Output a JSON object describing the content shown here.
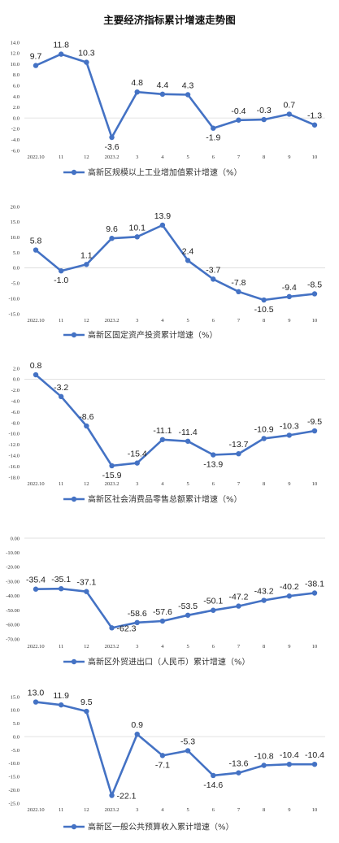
{
  "title": "主要经济指标累计增速走势图",
  "categories": [
    "2022.10",
    "11",
    "12",
    "2023.2",
    "3",
    "4",
    "5",
    "6",
    "7",
    "8",
    "9",
    "10"
  ],
  "line_color": "#4472C4",
  "chart_data": [
    {
      "type": "line",
      "series": [
        {
          "name": "高新区规模以上工业增加值累计增速（%）",
          "values": [
            9.7,
            11.8,
            10.3,
            -3.6,
            4.8,
            4.4,
            4.3,
            -1.9,
            -0.4,
            -0.3,
            0.7,
            -1.3
          ]
        }
      ],
      "ylim": [
        -6,
        14
      ],
      "ystep": 2,
      "decimals": 1,
      "grid": false,
      "legend": "bottom"
    },
    {
      "type": "line",
      "series": [
        {
          "name": "高新区固定资产投资累计增速（%）",
          "values": [
            5.8,
            -1.0,
            1.1,
            9.6,
            10.1,
            13.9,
            2.4,
            -3.7,
            -7.8,
            -10.5,
            -9.4,
            -8.5
          ]
        }
      ],
      "ylim": [
        -15,
        20
      ],
      "ystep": 5,
      "decimals": 1,
      "grid": false,
      "legend": "bottom"
    },
    {
      "type": "line",
      "series": [
        {
          "name": "高新区社会消费品零售总额累计增速（%）",
          "values": [
            0.8,
            -3.2,
            -8.6,
            -15.9,
            -15.4,
            -11.1,
            -11.4,
            -13.9,
            -13.7,
            -10.9,
            -10.3,
            -9.5
          ]
        }
      ],
      "ylim": [
        -18,
        2
      ],
      "ystep": 2,
      "decimals": 1,
      "grid": false,
      "legend": "bottom"
    },
    {
      "type": "line",
      "series": [
        {
          "name": "高新区外贸进出口（人民币）累计增速（%）",
          "values": [
            -35.4,
            -35.1,
            -37.1,
            -62.3,
            -58.6,
            -57.6,
            -53.5,
            -50.1,
            -47.2,
            -43.2,
            -40.2,
            -38.1
          ]
        }
      ],
      "ylim": [
        -70,
        0
      ],
      "ystep": 10,
      "decimals": 2,
      "grid": false,
      "legend": "bottom"
    },
    {
      "type": "line",
      "series": [
        {
          "name": "高新区一般公共预算收入累计增速（%）",
          "values": [
            13.0,
            11.9,
            9.5,
            -22.1,
            0.9,
            -7.1,
            -5.3,
            -14.6,
            -13.6,
            -10.8,
            -10.4,
            -10.4
          ]
        }
      ],
      "ylim": [
        -25,
        15
      ],
      "ystep": 5,
      "decimals": 1,
      "grid": false,
      "legend": "bottom"
    }
  ]
}
